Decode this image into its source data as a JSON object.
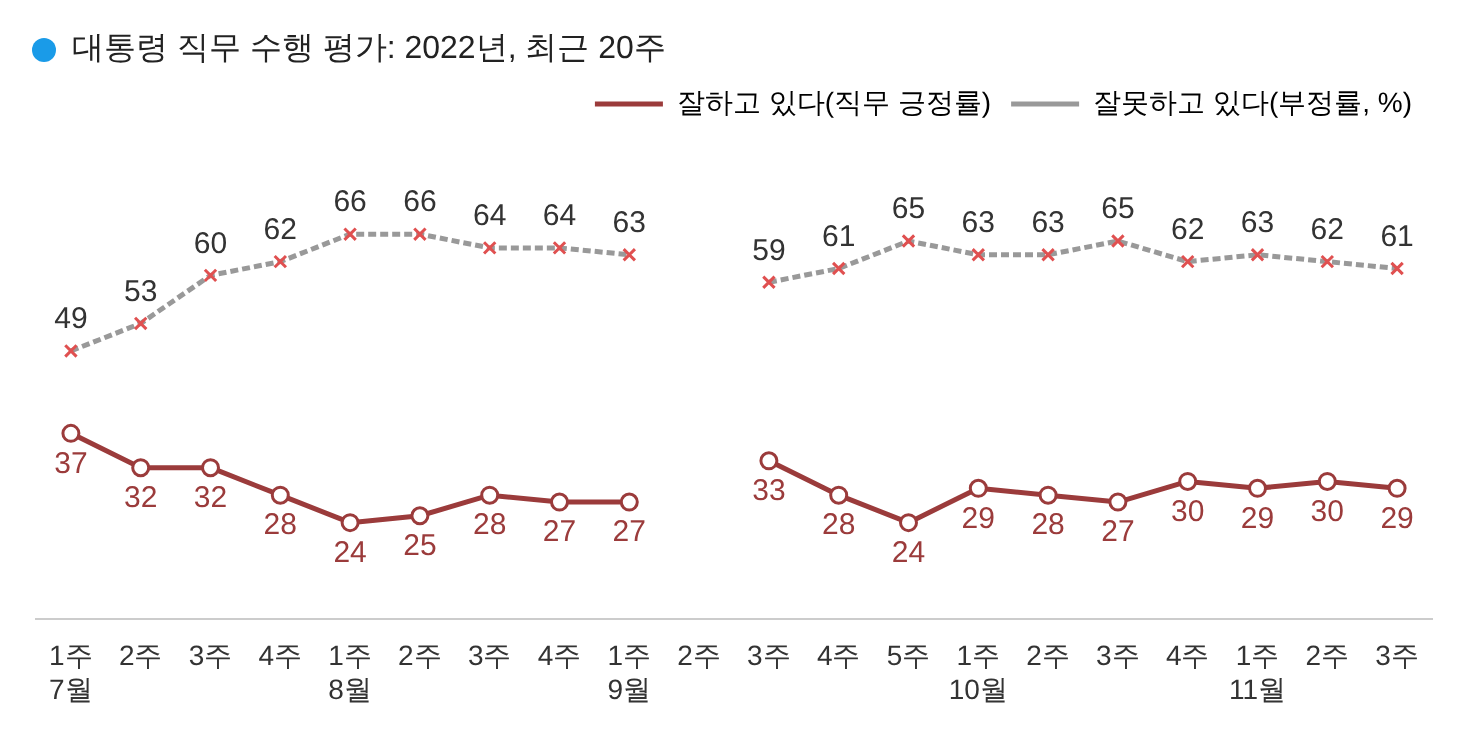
{
  "chart_data": {
    "type": "line",
    "title": "대통령 직무 수행 평가: 2022년, 최근 20주",
    "categories": [
      "1주\n7월",
      "2주",
      "3주",
      "4주",
      "1주\n8월",
      "2주",
      "3주",
      "4주",
      "1주\n9월",
      "2주",
      "3주",
      "4주",
      "5주",
      "1주\n10월",
      "2주",
      "3주",
      "4주",
      "1주\n11월",
      "2주",
      "3주"
    ],
    "series": [
      {
        "name": "잘하고 있다(직무 긍정률)",
        "color": "#9b3b3b",
        "marker": "circle",
        "line_style": "solid",
        "values": [
          37,
          32,
          32,
          28,
          24,
          25,
          28,
          27,
          27,
          null,
          33,
          28,
          24,
          29,
          28,
          27,
          30,
          29,
          30,
          29
        ]
      },
      {
        "name": "잘못하고 있다(부정률, %)",
        "color": "#999999",
        "marker": "cross",
        "line_style": "dashed",
        "values": [
          49,
          53,
          60,
          62,
          66,
          66,
          64,
          64,
          63,
          null,
          59,
          61,
          65,
          63,
          63,
          65,
          62,
          63,
          62,
          61
        ]
      }
    ],
    "data_labels": true,
    "legend": "top right",
    "grid": false
  }
}
